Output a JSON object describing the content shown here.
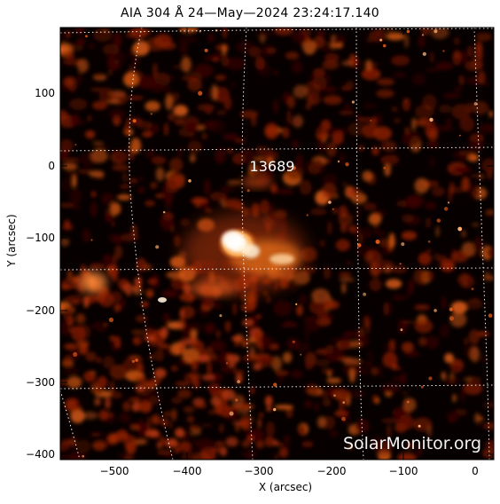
{
  "title": "AIA 304 Å 24—May—2024  23:24:17.140",
  "xlabel": "X (arcsec)",
  "ylabel": "Y (arcsec)",
  "x_ticks": [
    "−500",
    "−400",
    "−300",
    "−200",
    "−100",
    "0"
  ],
  "y_ticks": [
    "100",
    "0",
    "−100",
    "−200",
    "−300",
    "−400"
  ],
  "active_region_label": "13689",
  "watermark": "SolarMonitor.org",
  "colors": {
    "background": "#070000",
    "dark_red": "#3c0500",
    "red": "#8a1d00",
    "orange": "#d95a14",
    "bright": "#fff6e6",
    "grid": "#ffffff"
  }
}
